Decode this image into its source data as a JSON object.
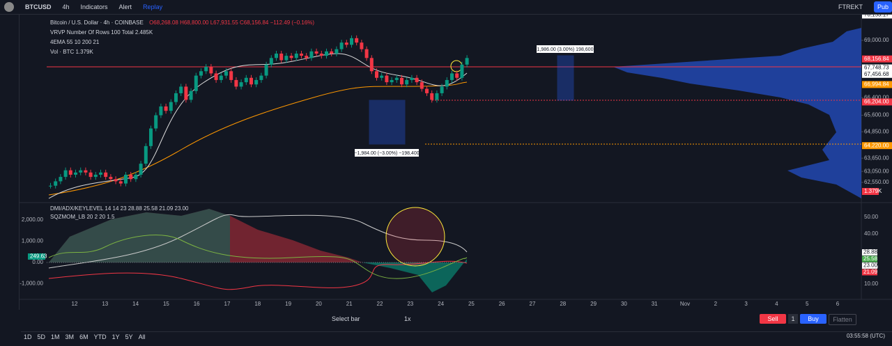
{
  "toolbar": {
    "symbol": "BTCUSD",
    "interval": "4h",
    "indicators": "Indicators",
    "alert": "Alert",
    "replay": "Replay",
    "account": "FTREKT",
    "publish": "Pub"
  },
  "legend": {
    "title": "Bitcoin / U.S. Dollar · 4h · COINBASE",
    "open": "O68,268.08",
    "high": "H68,800.00",
    "low": "L67,931.55",
    "close": "C68,156.84",
    "change": "−112.49 (−0.16%)",
    "vrvp": "VRVP Number Of Rows 100 Total 2.485K",
    "ema": "4EMA 55 10 200 21",
    "volume": "Vol · BTC 1.379K"
  },
  "lower_legend": {
    "dmi": "DMI/ADX/KEYLEVEL 14 14 23 28.88 25.58 21.09 23.00",
    "sqz": "SQZMOM_LB 20 2 20 1.5"
  },
  "annotations": {
    "long": "1,986.00 (3.00%) 198,600",
    "short": "−1,984.00 (−3.00%) −198,400"
  },
  "price_axis": [
    {
      "value": 70153.17,
      "label": "70,153.17"
    },
    {
      "value": 69000,
      "label": "69,000.00"
    },
    {
      "value": 68156.84,
      "label": "68,156.84"
    },
    {
      "value": 67748.73,
      "label": "67,748.73"
    },
    {
      "value": 67456.68,
      "label": "67,456.68"
    },
    {
      "value": 66994.84,
      "label": "66,994.84"
    },
    {
      "value": 66400,
      "label": "66,400.00"
    },
    {
      "value": 66204,
      "label": "66,204.00"
    },
    {
      "value": 65600,
      "label": "65,600.00"
    },
    {
      "value": 64850,
      "label": "64,850.00"
    },
    {
      "value": 64220,
      "label": "64,220.00"
    },
    {
      "value": 63650,
      "label": "63,650.00"
    },
    {
      "value": 63050,
      "label": "63,050.00"
    },
    {
      "value": 62550,
      "label": "62,550.00"
    }
  ],
  "volume_label": "1.379K",
  "lower_left_axis": [
    {
      "value": 2000,
      "label": "2,000.00"
    },
    {
      "value": 1000,
      "label": "1,000.00"
    },
    {
      "value": 0,
      "label": "0.00"
    },
    {
      "value": -1000,
      "label": "-1,000.00"
    }
  ],
  "momentum_label": "249.63",
  "lower_right_axis": [
    {
      "value": 50,
      "label": "50.00"
    },
    {
      "value": 40,
      "label": "40.00"
    },
    {
      "value": 20,
      "label": "20.00"
    },
    {
      "value": 10,
      "label": "10.00"
    }
  ],
  "dmi_labels": [
    {
      "value": 28.88,
      "label": "28.88"
    },
    {
      "value": 25.58,
      "label": "25.58"
    },
    {
      "value": 23,
      "label": "23.00"
    },
    {
      "value": 21.09,
      "label": "21.09"
    }
  ],
  "dates": [
    "12",
    "13",
    "14",
    "15",
    "16",
    "17",
    "18",
    "19",
    "20",
    "21",
    "22",
    "23",
    "24",
    "25",
    "26",
    "27",
    "28",
    "29",
    "30",
    "31",
    "Nov",
    "2",
    "3",
    "4",
    "5",
    "6"
  ],
  "closes": [
    62400,
    62600,
    62800,
    63100,
    62900,
    63000,
    63100,
    63000,
    62800,
    62900,
    63000,
    62800,
    62700,
    62600,
    62500,
    62900,
    62700,
    62900,
    63400,
    64200,
    65000,
    65600,
    66000,
    65800,
    66200,
    66600,
    66900,
    66300,
    66700,
    67400,
    67600,
    67800,
    67500,
    67200,
    67400,
    67600,
    67200,
    66900,
    67100,
    67300,
    67000,
    67200,
    67400,
    67900,
    68200,
    68400,
    68100,
    68300,
    68200,
    68400,
    68300,
    68200,
    68500,
    68400,
    68300,
    68500,
    68400,
    68600,
    68900,
    68800,
    69100,
    68900,
    68600,
    68200,
    67600,
    67300,
    67400,
    67100,
    67200,
    67300,
    67000,
    67200,
    67300,
    67100,
    66800,
    66600,
    66300,
    66600,
    66900,
    67200,
    67500,
    67300,
    67900,
    68200
  ],
  "bottom": {
    "ranges": [
      "1D",
      "5D",
      "1M",
      "3M",
      "6M",
      "YTD",
      "1Y",
      "5Y",
      "All"
    ],
    "select_bar": "Select bar",
    "speed": "1x",
    "sell": "Sell",
    "quantity": "1",
    "buy": "Buy",
    "flatten": "Flatten",
    "clock": "03:55:58 (UTC)"
  }
}
